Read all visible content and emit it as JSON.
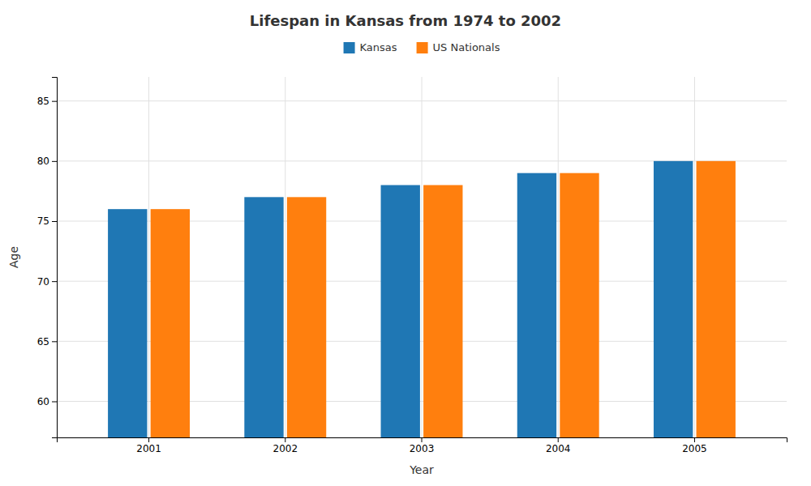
{
  "chart_data": {
    "type": "bar",
    "title": "Lifespan in Kansas from 1974 to 2002",
    "xlabel": "Year",
    "ylabel": "Age",
    "categories": [
      "2001",
      "2002",
      "2003",
      "2004",
      "2005"
    ],
    "series": [
      {
        "name": "Kansas",
        "values": [
          76,
          77,
          78,
          79,
          80
        ]
      },
      {
        "name": "US Nationals",
        "values": [
          76,
          77,
          78,
          79,
          80
        ]
      }
    ],
    "ylim": [
      57,
      87
    ],
    "yticks": [
      60,
      65,
      70,
      75,
      80,
      85
    ],
    "grid": true,
    "legend": "top"
  }
}
